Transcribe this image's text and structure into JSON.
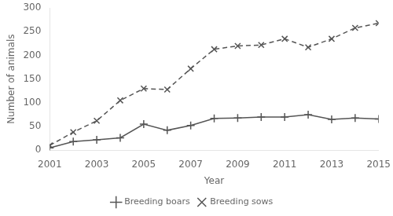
{
  "chart_data": {
    "type": "line",
    "x": [
      2001,
      2002,
      2003,
      2004,
      2005,
      2006,
      2007,
      2008,
      2009,
      2010,
      2011,
      2012,
      2013,
      2014,
      2015
    ],
    "series": [
      {
        "name": "Breeding boars",
        "color": "#555555",
        "marker": "plus",
        "line_style": "solid",
        "values": [
          5,
          18,
          22,
          26,
          55,
          42,
          52,
          67,
          68,
          70,
          70,
          75,
          65,
          68,
          66
        ]
      },
      {
        "name": "Breeding sows",
        "color": "#555555",
        "marker": "x",
        "line_style": "dashed",
        "values": [
          10,
          38,
          62,
          105,
          130,
          128,
          172,
          213,
          220,
          222,
          235,
          217,
          235,
          258,
          268
        ]
      }
    ],
    "xlabel": "Year",
    "ylabel": "Number of animals",
    "xlim": [
      2001,
      2015
    ],
    "xticks": [
      2001,
      2003,
      2005,
      2007,
      2009,
      2011,
      2013,
      2015
    ],
    "ylim": [
      0,
      300
    ],
    "yticks": [
      0,
      50,
      100,
      150,
      200,
      250,
      300
    ],
    "grid": false,
    "legend": "bottom"
  }
}
